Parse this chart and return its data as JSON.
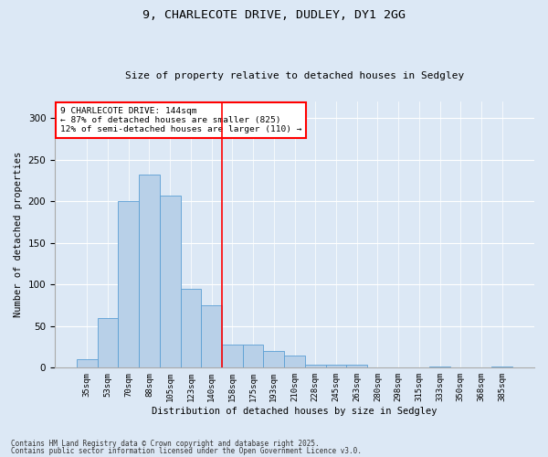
{
  "title1": "9, CHARLECOTE DRIVE, DUDLEY, DY1 2GG",
  "title2": "Size of property relative to detached houses in Sedgley",
  "xlabel": "Distribution of detached houses by size in Sedgley",
  "ylabel": "Number of detached properties",
  "categories": [
    "35sqm",
    "53sqm",
    "70sqm",
    "88sqm",
    "105sqm",
    "123sqm",
    "140sqm",
    "158sqm",
    "175sqm",
    "193sqm",
    "210sqm",
    "228sqm",
    "245sqm",
    "263sqm",
    "280sqm",
    "298sqm",
    "315sqm",
    "333sqm",
    "350sqm",
    "368sqm",
    "385sqm"
  ],
  "values": [
    10,
    60,
    200,
    232,
    207,
    95,
    75,
    28,
    28,
    20,
    15,
    4,
    4,
    4,
    0,
    0,
    0,
    1,
    0,
    0,
    2
  ],
  "bar_color": "#b8d0e8",
  "bar_edge_color": "#5a9fd4",
  "vline_position": 6.5,
  "vline_color": "red",
  "annotation_title": "9 CHARLECOTE DRIVE: 144sqm",
  "annotation_line1": "← 87% of detached houses are smaller (825)",
  "annotation_line2": "12% of semi-detached houses are larger (110) →",
  "annotation_box_color": "white",
  "annotation_box_edge": "red",
  "ylim": [
    0,
    320
  ],
  "yticks": [
    0,
    50,
    100,
    150,
    200,
    250,
    300
  ],
  "footer1": "Contains HM Land Registry data © Crown copyright and database right 2025.",
  "footer2": "Contains public sector information licensed under the Open Government Licence v3.0.",
  "bg_color": "#dce8f5"
}
